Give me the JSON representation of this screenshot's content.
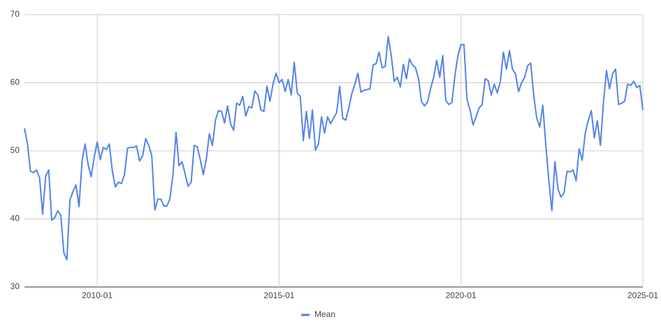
{
  "chart_data": {
    "type": "line",
    "x": [
      "2008-01",
      "2008-02",
      "2008-03",
      "2008-04",
      "2008-05",
      "2008-06",
      "2008-07",
      "2008-08",
      "2008-09",
      "2008-10",
      "2008-11",
      "2008-12",
      "2009-01",
      "2009-02",
      "2009-03",
      "2009-04",
      "2009-05",
      "2009-06",
      "2009-07",
      "2009-08",
      "2009-09",
      "2009-10",
      "2009-11",
      "2009-12",
      "2010-01",
      "2010-02",
      "2010-03",
      "2010-04",
      "2010-05",
      "2010-06",
      "2010-07",
      "2010-08",
      "2010-09",
      "2010-10",
      "2010-11",
      "2010-12",
      "2011-01",
      "2011-02",
      "2011-03",
      "2011-04",
      "2011-05",
      "2011-06",
      "2011-07",
      "2011-08",
      "2011-09",
      "2011-10",
      "2011-11",
      "2011-12",
      "2012-01",
      "2012-02",
      "2012-03",
      "2012-04",
      "2012-05",
      "2012-06",
      "2012-07",
      "2012-08",
      "2012-09",
      "2012-10",
      "2012-11",
      "2012-12",
      "2013-01",
      "2013-02",
      "2013-03",
      "2013-04",
      "2013-05",
      "2013-06",
      "2013-07",
      "2013-08",
      "2013-09",
      "2013-10",
      "2013-11",
      "2013-12",
      "2014-01",
      "2014-02",
      "2014-03",
      "2014-04",
      "2014-05",
      "2014-06",
      "2014-07",
      "2014-08",
      "2014-09",
      "2014-10",
      "2014-11",
      "2014-12",
      "2015-01",
      "2015-02",
      "2015-03",
      "2015-04",
      "2015-05",
      "2015-06",
      "2015-07",
      "2015-08",
      "2015-09",
      "2015-10",
      "2015-11",
      "2015-12",
      "2016-01",
      "2016-02",
      "2016-03",
      "2016-04",
      "2016-05",
      "2016-06",
      "2016-07",
      "2016-08",
      "2016-09",
      "2016-10",
      "2016-11",
      "2016-12",
      "2017-01",
      "2017-02",
      "2017-03",
      "2017-04",
      "2017-05",
      "2017-06",
      "2017-07",
      "2017-08",
      "2017-09",
      "2017-10",
      "2017-11",
      "2017-12",
      "2018-01",
      "2018-02",
      "2018-03",
      "2018-04",
      "2018-05",
      "2018-06",
      "2018-07",
      "2018-08",
      "2018-09",
      "2018-10",
      "2018-11",
      "2018-12",
      "2019-01",
      "2019-02",
      "2019-03",
      "2019-04",
      "2019-05",
      "2019-06",
      "2019-07",
      "2019-08",
      "2019-09",
      "2019-10",
      "2019-11",
      "2019-12",
      "2020-01",
      "2020-02",
      "2020-03",
      "2020-04",
      "2020-05",
      "2020-06",
      "2020-07",
      "2020-08",
      "2020-09",
      "2020-10",
      "2020-11",
      "2020-12",
      "2021-01",
      "2021-02",
      "2021-03",
      "2021-04",
      "2021-05",
      "2021-06",
      "2021-07",
      "2021-08",
      "2021-09",
      "2021-10",
      "2021-11",
      "2021-12",
      "2022-01",
      "2022-02",
      "2022-03",
      "2022-04",
      "2022-05",
      "2022-06",
      "2022-07",
      "2022-08",
      "2022-09",
      "2022-10",
      "2022-11",
      "2022-12",
      "2023-01",
      "2023-02",
      "2023-03",
      "2023-04",
      "2023-05",
      "2023-06",
      "2023-07",
      "2023-08",
      "2023-09",
      "2023-10",
      "2023-11",
      "2023-12",
      "2024-01",
      "2024-02",
      "2024-03",
      "2024-04",
      "2024-05",
      "2024-06",
      "2024-07",
      "2024-08",
      "2024-09",
      "2024-10",
      "2024-11",
      "2024-12",
      "2025-01"
    ],
    "series": [
      {
        "name": "Mean",
        "color": "#5383e8",
        "values": [
          53.3,
          51,
          47,
          46.8,
          47.2,
          46,
          40.7,
          46.3,
          47.2,
          39.8,
          40.2,
          41.2,
          40.5,
          35,
          34,
          42.8,
          44,
          45,
          41.8,
          48.5,
          51,
          48,
          46.2,
          49,
          51.3,
          48.7,
          50.5,
          50.2,
          51,
          47,
          44.7,
          45.4,
          45.2,
          46.5,
          50.4,
          50.5,
          50.5,
          50.7,
          48.5,
          49.3,
          51.8,
          50.8,
          49.3,
          41.3,
          42.9,
          42.9,
          41.9,
          41.9,
          43,
          46.5,
          52.7,
          47.8,
          48.4,
          46.6,
          44.8,
          45.4,
          50.8,
          50.6,
          48.7,
          46.5,
          48.8,
          52.5,
          50.8,
          54.5,
          55.9,
          55.8,
          54.1,
          56.6,
          54,
          53,
          57,
          56.7,
          58,
          55.1,
          56.5,
          56.3,
          58.8,
          58.2,
          56,
          55.8,
          59.5,
          57.3,
          59.8,
          61.4,
          60,
          60.5,
          58.7,
          60.5,
          58.2,
          63,
          58.5,
          58,
          51.5,
          55.8,
          51.8,
          56,
          50.1,
          51,
          55,
          52.6,
          55,
          54,
          54.8,
          55.6,
          59.5,
          54.8,
          54.5,
          56.3,
          58.4,
          59.8,
          61.4,
          58.6,
          58.9,
          59,
          59.1,
          62.6,
          62.8,
          64.5,
          62.2,
          62.4,
          66.8,
          64,
          60.2,
          60.8,
          59.4,
          62.7,
          60.6,
          63.5,
          62.6,
          62.2,
          60.6,
          57.2,
          56.6,
          57.2,
          59.2,
          60.8,
          63.3,
          60.8,
          64,
          57.4,
          56.8,
          57.1,
          61,
          64,
          65.6,
          65.6,
          57.5,
          56,
          53.8,
          55,
          56.3,
          56.8,
          60.6,
          60.3,
          58.2,
          59.8,
          58.5,
          60.2,
          64.5,
          62,
          64.7,
          62,
          61.3,
          58.7,
          60,
          60.8,
          62.5,
          62.9,
          58.2,
          54.8,
          53.5,
          56.7,
          50.8,
          45.6,
          41.2,
          48.4,
          44.4,
          43.2,
          43.8,
          47,
          46.9,
          47.2,
          45.6,
          50.3,
          48.6,
          52.6,
          54.5,
          55.9,
          51.9,
          54.4,
          50.8,
          57,
          61.8,
          59.1,
          61.3,
          62,
          56.8,
          57,
          57.3,
          59.8,
          59.6,
          60.2,
          59.3,
          59.6,
          56
        ]
      }
    ],
    "xlim": [
      "2008-01",
      "2025-01"
    ],
    "xticks": [
      "2010-01",
      "2015-01",
      "2020-01",
      "2025-01"
    ],
    "ylim": [
      30,
      70
    ],
    "yticks": [
      30,
      40,
      50,
      60,
      70
    ],
    "grid": true,
    "legend": "bottom"
  }
}
